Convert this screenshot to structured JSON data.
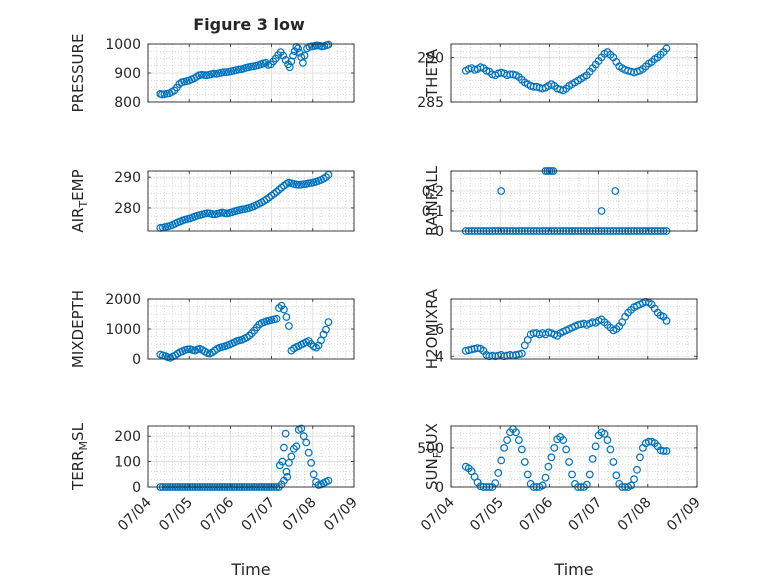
{
  "figure": {
    "title": "Figure 3 low"
  },
  "colors": {
    "marker": "#0072BD",
    "axis": "#262626",
    "grid": "#b8b8b8"
  },
  "chart_data": [
    {
      "type": "scatter",
      "id": "pressure",
      "ylabel": "PRESSURE",
      "ylim": [
        800,
        1000
      ],
      "yticks": [
        800,
        900,
        1000
      ],
      "yticklabels": [
        "800",
        "900",
        "1000"
      ],
      "xlim": [
        4.0,
        9.0
      ],
      "grid": true,
      "x": [
        4.3,
        4.34,
        4.4,
        4.46,
        4.52,
        4.58,
        4.64,
        4.7,
        4.76,
        4.82,
        4.88,
        4.94,
        5.0,
        5.06,
        5.12,
        5.18,
        5.24,
        5.3,
        5.36,
        5.42,
        5.48,
        5.54,
        5.6,
        5.66,
        5.72,
        5.78,
        5.84,
        5.9,
        5.96,
        6.02,
        6.08,
        6.14,
        6.2,
        6.26,
        6.32,
        6.38,
        6.44,
        6.5,
        6.56,
        6.62,
        6.68,
        6.74,
        6.8,
        6.86,
        6.92,
        6.98,
        7.04,
        7.1,
        7.16,
        7.22,
        7.28,
        7.34,
        7.4,
        7.44,
        7.48,
        7.52,
        7.56,
        7.6,
        7.64,
        7.68,
        7.72,
        7.76,
        7.8,
        7.86,
        7.92,
        7.98,
        8.04,
        8.1,
        8.16,
        8.22,
        8.28,
        8.34,
        8.38
      ],
      "y": [
        828,
        826,
        827,
        829,
        830,
        835,
        840,
        850,
        862,
        868,
        870,
        872,
        874,
        878,
        882,
        887,
        892,
        894,
        893,
        892,
        894,
        896,
        898,
        897,
        899,
        901,
        903,
        903,
        904,
        906,
        908,
        910,
        912,
        913,
        915,
        918,
        920,
        922,
        923,
        925,
        927,
        930,
        933,
        935,
        928,
        930,
        940,
        950,
        962,
        972,
        960,
        945,
        930,
        920,
        940,
        960,
        975,
        990,
        985,
        970,
        955,
        935,
        960,
        985,
        990,
        992,
        993,
        995,
        994,
        992,
        993,
        996,
        998
      ]
    },
    {
      "type": "scatter",
      "id": "theta",
      "ylabel": "THETA",
      "ylim": [
        285,
        291.5
      ],
      "yticks": [
        285,
        290
      ],
      "yticklabels": [
        "285",
        "290"
      ],
      "xlim": [
        4.0,
        9.0
      ],
      "grid": true,
      "x": [
        4.3,
        4.36,
        4.42,
        4.48,
        4.54,
        4.6,
        4.66,
        4.72,
        4.78,
        4.84,
        4.9,
        4.96,
        5.02,
        5.08,
        5.14,
        5.2,
        5.26,
        5.32,
        5.38,
        5.44,
        5.5,
        5.56,
        5.62,
        5.68,
        5.74,
        5.8,
        5.86,
        5.92,
        5.98,
        6.04,
        6.1,
        6.16,
        6.22,
        6.28,
        6.34,
        6.4,
        6.46,
        6.52,
        6.58,
        6.64,
        6.7,
        6.76,
        6.82,
        6.88,
        6.94,
        7.0,
        7.06,
        7.12,
        7.18,
        7.24,
        7.3,
        7.36,
        7.42,
        7.48,
        7.54,
        7.6,
        7.66,
        7.72,
        7.78,
        7.84,
        7.9,
        7.96,
        8.02,
        8.08,
        8.14,
        8.2,
        8.26,
        8.32,
        8.38
      ],
      "y": [
        288.5,
        288.7,
        288.8,
        288.6,
        288.7,
        288.9,
        288.8,
        288.5,
        288.4,
        288.1,
        288.0,
        288.2,
        288.3,
        288.2,
        288.0,
        288.1,
        288.1,
        288.0,
        287.8,
        287.5,
        287.2,
        287.0,
        286.8,
        286.7,
        286.7,
        286.6,
        286.5,
        286.6,
        286.8,
        287.0,
        286.8,
        286.5,
        286.4,
        286.3,
        286.5,
        286.8,
        287.0,
        287.2,
        287.4,
        287.6,
        287.8,
        288.0,
        288.4,
        288.8,
        289.2,
        289.6,
        290.0,
        290.4,
        290.6,
        290.3,
        290.0,
        289.5,
        289.0,
        288.8,
        288.6,
        288.5,
        288.4,
        288.3,
        288.4,
        288.5,
        288.7,
        289.0,
        289.3,
        289.5,
        289.8,
        290.0,
        290.3,
        290.6,
        291.0
      ]
    },
    {
      "type": "scatter",
      "id": "air-temp",
      "ylabel": "AIR_TEMP",
      "ylim": [
        272.5,
        292
      ],
      "yticks": [
        280,
        290
      ],
      "yticklabels": [
        "280",
        "290"
      ],
      "xlim": [
        4.0,
        9.0
      ],
      "grid": true,
      "x": [
        4.3,
        4.36,
        4.42,
        4.48,
        4.54,
        4.6,
        4.66,
        4.72,
        4.78,
        4.84,
        4.9,
        4.96,
        5.02,
        5.08,
        5.14,
        5.2,
        5.26,
        5.32,
        5.38,
        5.44,
        5.5,
        5.56,
        5.62,
        5.68,
        5.74,
        5.8,
        5.86,
        5.92,
        5.98,
        6.04,
        6.1,
        6.16,
        6.22,
        6.28,
        6.34,
        6.4,
        6.46,
        6.52,
        6.58,
        6.64,
        6.7,
        6.76,
        6.82,
        6.88,
        6.94,
        7.0,
        7.06,
        7.12,
        7.18,
        7.24,
        7.3,
        7.36,
        7.42,
        7.48,
        7.54,
        7.6,
        7.66,
        7.72,
        7.78,
        7.84,
        7.9,
        7.96,
        8.02,
        8.08,
        8.14,
        8.2,
        8.26,
        8.32,
        8.38
      ],
      "y": [
        273.5,
        273.6,
        273.8,
        274.0,
        274.2,
        274.5,
        274.9,
        275.3,
        275.6,
        275.9,
        276.2,
        276.4,
        276.6,
        276.9,
        277.2,
        277.5,
        277.7,
        277.9,
        278.1,
        278.3,
        278.2,
        278.0,
        277.9,
        278.1,
        278.3,
        278.5,
        278.3,
        278.2,
        278.4,
        278.6,
        278.9,
        279.1,
        279.3,
        279.5,
        279.6,
        279.8,
        280.0,
        280.3,
        280.6,
        281.0,
        281.4,
        281.8,
        282.3,
        282.8,
        283.4,
        284.0,
        284.6,
        285.2,
        285.9,
        286.6,
        287.2,
        287.8,
        288.2,
        288.0,
        287.8,
        287.6,
        287.5,
        287.6,
        287.7,
        287.8,
        288.0,
        288.1,
        288.3,
        288.5,
        288.8,
        289.1,
        289.5,
        290.0,
        290.8
      ]
    },
    {
      "type": "scatter",
      "id": "rainfall",
      "ylabel": "RAINFALL",
      "ylim": [
        0,
        0.3
      ],
      "yticks": [
        0,
        0.1,
        0.2
      ],
      "yticklabels": [
        "0",
        "0.1",
        "0.2"
      ],
      "xlim": [
        4.0,
        9.0
      ],
      "grid": true,
      "x": [
        4.3,
        4.36,
        4.42,
        4.48,
        4.54,
        4.6,
        4.66,
        4.72,
        4.78,
        4.84,
        4.9,
        4.96,
        5.02,
        5.08,
        5.14,
        5.2,
        5.26,
        5.32,
        5.38,
        5.44,
        5.5,
        5.56,
        5.62,
        5.68,
        5.74,
        5.8,
        5.86,
        5.92,
        5.98,
        6.04,
        6.1,
        6.16,
        6.22,
        6.28,
        6.34,
        6.4,
        6.46,
        6.52,
        6.58,
        6.64,
        6.7,
        6.76,
        6.82,
        6.88,
        6.94,
        7.0,
        7.06,
        7.12,
        7.18,
        7.24,
        7.3,
        7.36,
        7.42,
        7.48,
        7.54,
        7.6,
        7.66,
        7.72,
        7.78,
        7.84,
        7.9,
        7.96,
        8.02,
        8.08,
        8.14,
        8.2,
        8.26,
        8.32,
        8.38,
        5.02,
        5.92,
        5.96,
        6.0,
        6.04,
        6.08,
        7.06,
        7.34
      ],
      "y": [
        0,
        0,
        0,
        0,
        0,
        0,
        0,
        0,
        0,
        0,
        0,
        0,
        0,
        0,
        0,
        0,
        0,
        0,
        0,
        0,
        0,
        0,
        0,
        0,
        0,
        0,
        0,
        0,
        0,
        0,
        0,
        0,
        0,
        0,
        0,
        0,
        0,
        0,
        0,
        0,
        0,
        0,
        0,
        0,
        0,
        0,
        0,
        0,
        0,
        0,
        0,
        0,
        0,
        0,
        0,
        0,
        0,
        0,
        0,
        0,
        0,
        0,
        0,
        0,
        0,
        0,
        0,
        0,
        0,
        0.2,
        0.3,
        0.3,
        0.3,
        0.3,
        0.3,
        0.1,
        0.2
      ]
    },
    {
      "type": "scatter",
      "id": "mixdepth",
      "ylabel": "MIXDEPTH",
      "ylim": [
        0,
        2000
      ],
      "yticks": [
        0,
        1000,
        2000
      ],
      "yticklabels": [
        "0",
        "1000",
        "2000"
      ],
      "xlim": [
        4.0,
        9.0
      ],
      "grid": true,
      "x": [
        4.3,
        4.36,
        4.42,
        4.48,
        4.54,
        4.6,
        4.66,
        4.72,
        4.78,
        4.84,
        4.9,
        4.96,
        5.02,
        5.08,
        5.14,
        5.2,
        5.26,
        5.32,
        5.38,
        5.44,
        5.5,
        5.56,
        5.62,
        5.68,
        5.74,
        5.8,
        5.86,
        5.92,
        5.98,
        6.04,
        6.1,
        6.16,
        6.22,
        6.28,
        6.34,
        6.4,
        6.46,
        6.52,
        6.58,
        6.64,
        6.7,
        6.76,
        6.82,
        6.88,
        6.94,
        7.0,
        7.06,
        7.12,
        7.18,
        7.24,
        7.3,
        7.36,
        7.42,
        7.48,
        7.54,
        7.6,
        7.66,
        7.72,
        7.78,
        7.84,
        7.9,
        7.96,
        8.02,
        8.08,
        8.14,
        8.2,
        8.26,
        8.32,
        8.38
      ],
      "y": [
        150,
        120,
        100,
        60,
        40,
        80,
        120,
        180,
        230,
        260,
        300,
        320,
        330,
        300,
        280,
        320,
        340,
        300,
        250,
        200,
        180,
        220,
        280,
        340,
        380,
        400,
        420,
        450,
        480,
        520,
        560,
        600,
        620,
        640,
        680,
        720,
        780,
        860,
        950,
        1050,
        1150,
        1200,
        1230,
        1260,
        1280,
        1300,
        1320,
        1340,
        1700,
        1780,
        1650,
        1400,
        1100,
        280,
        350,
        400,
        430,
        480,
        520,
        560,
        600,
        500,
        420,
        380,
        450,
        620,
        820,
        980,
        1230
      ]
    },
    {
      "type": "scatter",
      "id": "h2omixra",
      "ylabel": "H2OMIXRA",
      "ylim": [
        3.8,
        8.2
      ],
      "yticks": [
        4,
        6
      ],
      "yticklabels": [
        "4",
        "6"
      ],
      "xlim": [
        4.0,
        9.0
      ],
      "grid": true,
      "x": [
        4.3,
        4.36,
        4.42,
        4.48,
        4.54,
        4.6,
        4.66,
        4.72,
        4.78,
        4.84,
        4.9,
        4.96,
        5.02,
        5.08,
        5.14,
        5.2,
        5.26,
        5.32,
        5.38,
        5.44,
        5.5,
        5.56,
        5.62,
        5.68,
        5.74,
        5.8,
        5.86,
        5.92,
        5.98,
        6.04,
        6.1,
        6.16,
        6.22,
        6.28,
        6.34,
        6.4,
        6.46,
        6.52,
        6.58,
        6.64,
        6.7,
        6.76,
        6.82,
        6.88,
        6.94,
        7.0,
        7.06,
        7.12,
        7.18,
        7.24,
        7.3,
        7.36,
        7.42,
        7.48,
        7.54,
        7.6,
        7.66,
        7.72,
        7.78,
        7.84,
        7.9,
        7.96,
        8.02,
        8.08,
        8.14,
        8.2,
        8.26,
        8.32,
        8.38
      ],
      "y": [
        4.4,
        4.45,
        4.5,
        4.55,
        4.6,
        4.55,
        4.4,
        4.1,
        4.0,
        4.05,
        4.0,
        4.05,
        4.1,
        4.0,
        4.05,
        4.1,
        4.05,
        4.1,
        4.15,
        4.2,
        4.8,
        5.2,
        5.6,
        5.7,
        5.7,
        5.6,
        5.7,
        5.6,
        5.75,
        5.7,
        5.6,
        5.5,
        5.7,
        5.8,
        5.9,
        6.0,
        6.1,
        6.2,
        6.3,
        6.35,
        6.4,
        6.3,
        6.4,
        6.5,
        6.45,
        6.6,
        6.7,
        6.5,
        6.3,
        6.1,
        5.9,
        6.0,
        6.2,
        6.5,
        6.9,
        7.2,
        7.4,
        7.6,
        7.7,
        7.8,
        7.9,
        8.0,
        7.95,
        7.8,
        7.5,
        7.2,
        7.0,
        6.9,
        6.6
      ]
    },
    {
      "type": "scatter",
      "id": "terr-msl",
      "ylabel": "TERR_MSL",
      "ylim": [
        0,
        240
      ],
      "yticks": [
        0,
        100,
        200
      ],
      "yticklabels": [
        "0",
        "100",
        "200"
      ],
      "xlim": [
        4.0,
        9.0
      ],
      "grid": true,
      "x": [
        4.3,
        4.36,
        4.42,
        4.48,
        4.54,
        4.6,
        4.66,
        4.72,
        4.78,
        4.84,
        4.9,
        4.96,
        5.02,
        5.08,
        5.14,
        5.2,
        5.26,
        5.32,
        5.38,
        5.44,
        5.5,
        5.56,
        5.62,
        5.68,
        5.74,
        5.8,
        5.86,
        5.92,
        5.98,
        6.04,
        6.1,
        6.16,
        6.22,
        6.28,
        6.34,
        6.4,
        6.46,
        6.52,
        6.58,
        6.64,
        6.7,
        6.76,
        6.82,
        6.88,
        6.94,
        7.0,
        7.06,
        7.12,
        7.18,
        7.24,
        7.3,
        7.36,
        7.42,
        7.48,
        7.54,
        7.6,
        7.66,
        7.72,
        7.78,
        7.84,
        7.9,
        7.96,
        8.02,
        8.08,
        8.14,
        8.2,
        8.26,
        8.32,
        8.38,
        7.2,
        7.26,
        7.3,
        7.34,
        7.38
      ],
      "y": [
        0,
        0,
        0,
        0,
        0,
        0,
        0,
        0,
        0,
        0,
        0,
        0,
        0,
        0,
        0,
        0,
        0,
        0,
        0,
        0,
        0,
        0,
        0,
        0,
        0,
        0,
        0,
        0,
        0,
        0,
        0,
        0,
        0,
        0,
        0,
        0,
        0,
        0,
        0,
        0,
        0,
        0,
        0,
        0,
        0,
        0,
        0,
        0,
        0,
        10,
        25,
        60,
        95,
        120,
        150,
        160,
        225,
        230,
        200,
        175,
        135,
        95,
        50,
        20,
        8,
        10,
        15,
        20,
        25,
        85,
        100,
        155,
        210,
        40
      ]
    },
    {
      "type": "scatter",
      "id": "sun-flux",
      "ylabel": "SUN_FLUX",
      "ylim": [
        0,
        780
      ],
      "yticks": [
        0,
        500
      ],
      "yticklabels": [
        "0",
        "500"
      ],
      "xlim": [
        4.0,
        9.0
      ],
      "grid": true,
      "xticks": [
        4,
        5,
        6,
        7,
        8,
        9
      ],
      "x": [
        4.3,
        4.36,
        4.42,
        4.48,
        4.54,
        4.6,
        4.66,
        4.72,
        4.78,
        4.84,
        4.9,
        4.96,
        5.02,
        5.08,
        5.14,
        5.2,
        5.26,
        5.32,
        5.38,
        5.44,
        5.5,
        5.56,
        5.62,
        5.68,
        5.74,
        5.8,
        5.86,
        5.92,
        5.98,
        6.04,
        6.1,
        6.16,
        6.22,
        6.28,
        6.34,
        6.4,
        6.46,
        6.52,
        6.58,
        6.64,
        6.7,
        6.76,
        6.82,
        6.88,
        6.94,
        7.0,
        7.06,
        7.12,
        7.18,
        7.24,
        7.3,
        7.36,
        7.42,
        7.48,
        7.54,
        7.6,
        7.66,
        7.72,
        7.78,
        7.84,
        7.9,
        7.96,
        8.02,
        8.08,
        8.14,
        8.2,
        8.26,
        8.32,
        8.38
      ],
      "y": [
        260,
        240,
        200,
        130,
        60,
        10,
        0,
        0,
        0,
        0,
        50,
        180,
        340,
        500,
        600,
        700,
        740,
        700,
        600,
        480,
        320,
        160,
        40,
        0,
        0,
        0,
        20,
        120,
        260,
        380,
        500,
        610,
        640,
        600,
        480,
        320,
        160,
        40,
        0,
        0,
        0,
        30,
        160,
        360,
        520,
        660,
        700,
        680,
        600,
        480,
        320,
        150,
        40,
        0,
        0,
        0,
        20,
        100,
        220,
        380,
        500,
        560,
        580,
        580,
        560,
        520,
        470,
        460,
        460
      ]
    }
  ],
  "xaxis": {
    "ticklabels": [
      "07/04",
      "07/05",
      "07/06",
      "07/07",
      "07/08",
      "07/09"
    ],
    "label": "Time"
  }
}
